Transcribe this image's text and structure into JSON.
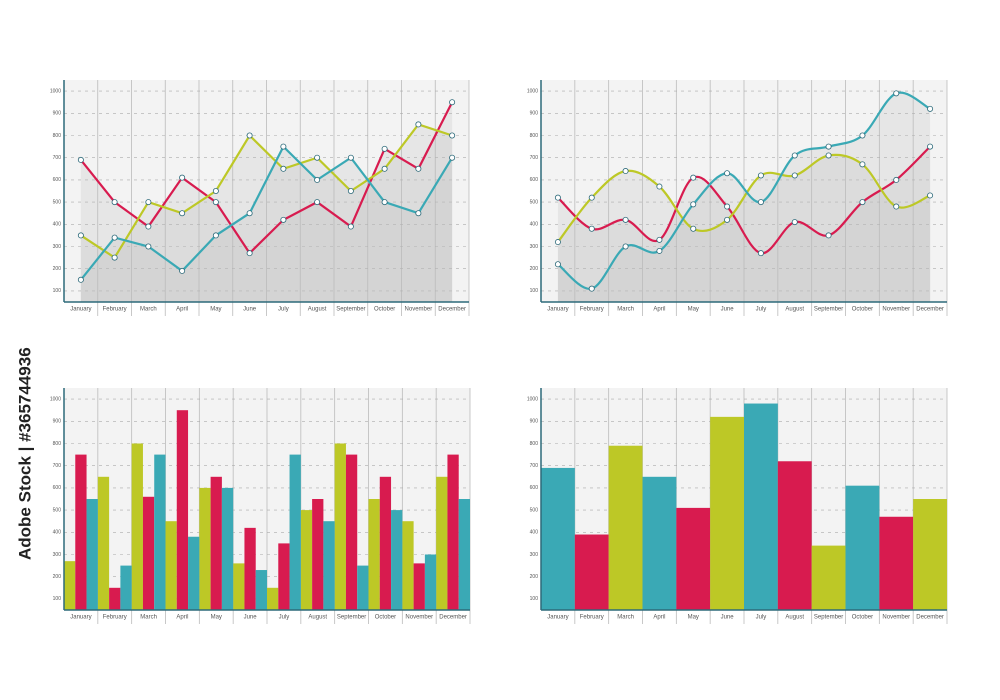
{
  "watermark": "Adobe Stock | #365744936",
  "chart_data": [
    {
      "type": "line",
      "categories": [
        "January",
        "February",
        "March",
        "April",
        "May",
        "June",
        "July",
        "August",
        "September",
        "October",
        "November",
        "December"
      ],
      "ylim": [
        50,
        1050
      ],
      "yticks": [
        100,
        200,
        300,
        400,
        500,
        600,
        700,
        800,
        900,
        1000
      ],
      "grid": true,
      "series": [
        {
          "name": "Red",
          "color": "#d81b4f",
          "values": [
            690,
            500,
            390,
            610,
            500,
            270,
            420,
            500,
            390,
            740,
            650,
            950
          ]
        },
        {
          "name": "Yellow",
          "color": "#bdc826",
          "values": [
            350,
            250,
            500,
            450,
            550,
            800,
            650,
            700,
            550,
            650,
            850,
            800
          ]
        },
        {
          "name": "Teal",
          "color": "#3aa9b5",
          "values": [
            150,
            340,
            300,
            190,
            350,
            450,
            750,
            600,
            700,
            500,
            450,
            700
          ]
        }
      ]
    },
    {
      "type": "line",
      "smooth": true,
      "categories": [
        "January",
        "February",
        "March",
        "April",
        "May",
        "June",
        "July",
        "August",
        "September",
        "October",
        "November",
        "December"
      ],
      "ylim": [
        50,
        1050
      ],
      "yticks": [
        100,
        200,
        300,
        400,
        500,
        600,
        700,
        800,
        900,
        1000
      ],
      "grid": true,
      "series": [
        {
          "name": "Red",
          "color": "#d81b4f",
          "values": [
            520,
            380,
            420,
            330,
            610,
            480,
            270,
            410,
            350,
            500,
            600,
            750
          ]
        },
        {
          "name": "Yellow",
          "color": "#bdc826",
          "values": [
            320,
            520,
            640,
            570,
            380,
            420,
            620,
            620,
            710,
            670,
            480,
            530
          ]
        },
        {
          "name": "Teal",
          "color": "#3aa9b5",
          "values": [
            220,
            110,
            300,
            280,
            490,
            630,
            500,
            710,
            750,
            800,
            990,
            920
          ]
        }
      ]
    },
    {
      "type": "grouped_bar",
      "categories": [
        "January",
        "February",
        "March",
        "April",
        "May",
        "June",
        "July",
        "August",
        "September",
        "October",
        "November",
        "December"
      ],
      "ylim": [
        50,
        1050
      ],
      "yticks": [
        100,
        200,
        300,
        400,
        500,
        600,
        700,
        800,
        900,
        1000
      ],
      "grid": true,
      "series": [
        {
          "name": "Yellow",
          "color": "#bdc826",
          "values": [
            270,
            650,
            800,
            450,
            600,
            260,
            150,
            500,
            800,
            550,
            450,
            650
          ]
        },
        {
          "name": "Red",
          "color": "#d81b4f",
          "values": [
            750,
            150,
            560,
            950,
            650,
            420,
            350,
            550,
            750,
            650,
            260,
            750
          ]
        },
        {
          "name": "Teal",
          "color": "#3aa9b5",
          "values": [
            550,
            250,
            750,
            380,
            600,
            230,
            750,
            450,
            250,
            500,
            300,
            550
          ]
        }
      ]
    },
    {
      "type": "bar",
      "categories": [
        "January",
        "February",
        "March",
        "April",
        "May",
        "June",
        "July",
        "August",
        "September",
        "October",
        "November",
        "December"
      ],
      "ylim": [
        50,
        1050
      ],
      "yticks": [
        100,
        200,
        300,
        400,
        500,
        600,
        700,
        800,
        900,
        1000
      ],
      "grid": true,
      "values": [
        690,
        390,
        790,
        650,
        510,
        920,
        980,
        720,
        340,
        610,
        470,
        550
      ],
      "colors": [
        "#3aa9b5",
        "#d81b4f",
        "#bdc826",
        "#3aa9b5",
        "#d81b4f",
        "#bdc826",
        "#3aa9b5",
        "#d81b4f",
        "#bdc826",
        "#3aa9b5",
        "#d81b4f",
        "#bdc826"
      ]
    }
  ]
}
